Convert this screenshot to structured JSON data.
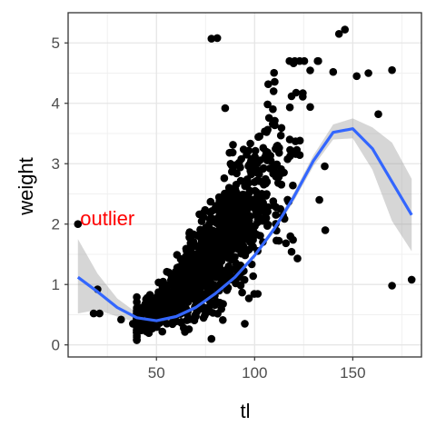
{
  "chart_data": {
    "type": "scatter",
    "xlabel": "tl",
    "ylabel": "weight",
    "xlim": [
      5,
      185
    ],
    "ylim": [
      -0.2,
      5.5
    ],
    "x_ticks": [
      50,
      100,
      150
    ],
    "y_ticks": [
      0,
      1,
      2,
      3,
      4,
      5
    ],
    "grid": true,
    "colors": {
      "points": "#000000",
      "smooth": "#3366ff",
      "band": "#999999",
      "annotation": "#ff0000"
    },
    "annotation": {
      "text": "outlier",
      "x": 25,
      "y": 2.1
    },
    "smooth": {
      "x": [
        10,
        20,
        30,
        40,
        50,
        60,
        70,
        80,
        90,
        100,
        110,
        120,
        130,
        140,
        150,
        160,
        170,
        180
      ],
      "y": [
        1.12,
        0.88,
        0.62,
        0.45,
        0.4,
        0.47,
        0.62,
        0.85,
        1.12,
        1.48,
        1.92,
        2.45,
        3.05,
        3.52,
        3.58,
        3.25,
        2.7,
        2.15
      ],
      "lower": [
        0.52,
        0.58,
        0.47,
        0.37,
        0.35,
        0.43,
        0.58,
        0.81,
        1.08,
        1.44,
        1.87,
        2.38,
        2.96,
        3.4,
        3.42,
        2.9,
        2.05,
        1.55
      ],
      "upper": [
        1.75,
        1.18,
        0.77,
        0.53,
        0.45,
        0.51,
        0.66,
        0.89,
        1.16,
        1.52,
        1.97,
        2.52,
        3.14,
        3.65,
        3.75,
        3.6,
        3.35,
        2.75
      ]
    },
    "outliers": [
      {
        "x": 10,
        "y": 2.0
      },
      {
        "x": 18,
        "y": 0.52
      },
      {
        "x": 21,
        "y": 0.52
      },
      {
        "x": 20,
        "y": 0.92
      },
      {
        "x": 38,
        "y": 0.35
      },
      {
        "x": 32,
        "y": 0.42
      },
      {
        "x": 78,
        "y": 5.07
      },
      {
        "x": 81,
        "y": 5.08
      },
      {
        "x": 85,
        "y": 3.92
      },
      {
        "x": 143,
        "y": 5.15
      },
      {
        "x": 146,
        "y": 5.22
      },
      {
        "x": 170,
        "y": 4.55
      },
      {
        "x": 158,
        "y": 4.5
      },
      {
        "x": 170,
        "y": 0.98
      },
      {
        "x": 180,
        "y": 1.08
      },
      {
        "x": 152,
        "y": 4.45
      },
      {
        "x": 140,
        "y": 4.52
      },
      {
        "x": 163,
        "y": 3.82
      },
      {
        "x": 136,
        "y": 1.9
      },
      {
        "x": 133,
        "y": 2.4
      },
      {
        "x": 40,
        "y": 0.3
      },
      {
        "x": 45,
        "y": 0.22
      },
      {
        "x": 78,
        "y": 0.1
      },
      {
        "x": 95,
        "y": 0.35
      }
    ],
    "cloud": {
      "n": 1250,
      "seed": 7,
      "x_range": [
        40,
        150
      ]
    }
  }
}
